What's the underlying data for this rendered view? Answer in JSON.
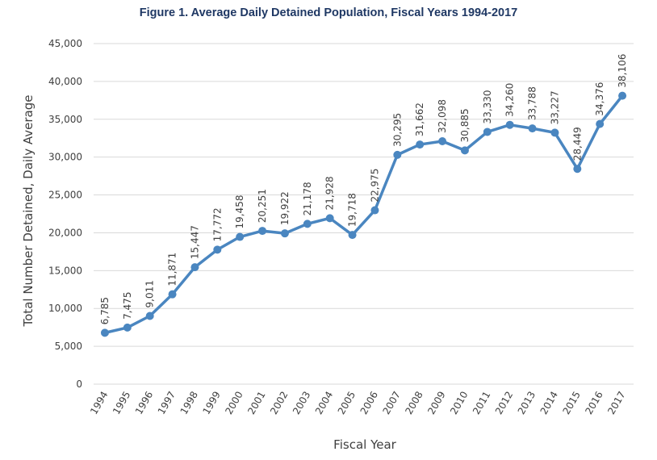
{
  "chart_data": {
    "type": "line",
    "title": "Figure 1. Average Daily Detained Population, Fiscal Years 1994-2017",
    "xlabel": "Fiscal Year",
    "ylabel": "Total Number Detained, Daily Average",
    "ylim": [
      0,
      45000
    ],
    "yticks": [
      "0",
      "5,000",
      "10,000",
      "15,000",
      "20,000",
      "25,000",
      "30,000",
      "35,000",
      "40,000",
      "45,000"
    ],
    "ytick_values": [
      0,
      5000,
      10000,
      15000,
      20000,
      25000,
      30000,
      35000,
      40000,
      45000
    ],
    "grid": true,
    "line_color": "#4a86c0",
    "categories": [
      "1994",
      "1995",
      "1996",
      "1997",
      "1998",
      "1999",
      "2000",
      "2001",
      "2002",
      "2003",
      "2004",
      "2005",
      "2006",
      "2007",
      "2008",
      "2009",
      "2010",
      "2011",
      "2012",
      "2013",
      "2014",
      "2015",
      "2016",
      "2017"
    ],
    "values": [
      6785,
      7475,
      9011,
      11871,
      15447,
      17772,
      19458,
      20251,
      19922,
      21178,
      21928,
      19718,
      22975,
      30295,
      31662,
      32098,
      30885,
      33330,
      34260,
      33788,
      33227,
      28449,
      34376,
      38106
    ],
    "data_labels": [
      "6,785",
      "7,475",
      "9,011",
      "11,871",
      "15,447",
      "17,772",
      "19,458",
      "20,251",
      "19,922",
      "21,178",
      "21,928",
      "19,718",
      "22,975",
      "30,295",
      "31,662",
      "32,098",
      "30,885",
      "33,330",
      "34,260",
      "33,788",
      "33,227",
      "28,449",
      "34,376",
      "38,106"
    ]
  }
}
